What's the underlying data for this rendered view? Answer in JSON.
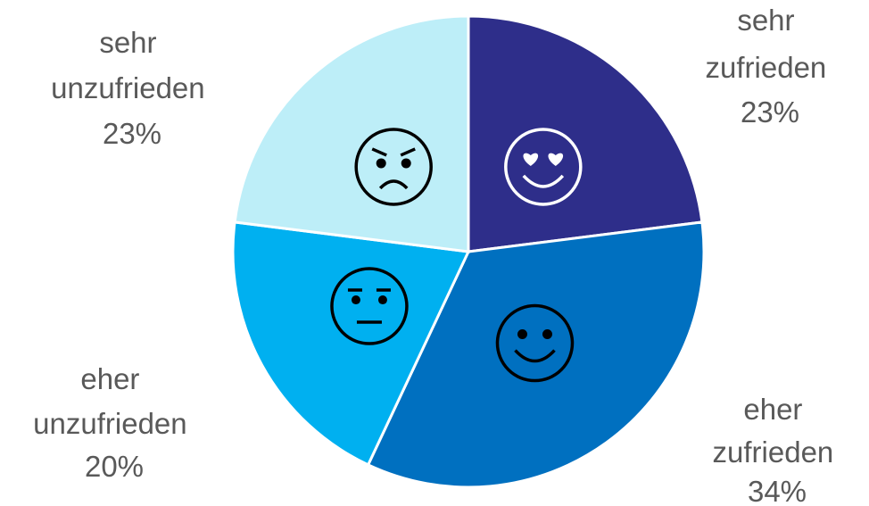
{
  "chart_data": {
    "type": "pie",
    "start_angle_deg": 0,
    "direction": "clockwise",
    "slices": [
      {
        "name_lines": [
          "sehr",
          "zufrieden"
        ],
        "percent_label": "23%",
        "value": 23,
        "color": "#2e2e8a",
        "icon": "heart-eyes-smiley-icon"
      },
      {
        "name_lines": [
          "eher",
          "zufrieden"
        ],
        "percent_label": "34%",
        "value": 34,
        "color": "#0070c0",
        "icon": "smiley-icon"
      },
      {
        "name_lines": [
          "eher",
          "unzufrieden"
        ],
        "percent_label": "20%",
        "value": 20,
        "color": "#00b0f0",
        "icon": "neutral-face-icon"
      },
      {
        "name_lines": [
          "sehr",
          "unzufrieden"
        ],
        "percent_label": "23%",
        "value": 23,
        "color": "#bdeef8",
        "icon": "angry-face-icon"
      }
    ]
  }
}
